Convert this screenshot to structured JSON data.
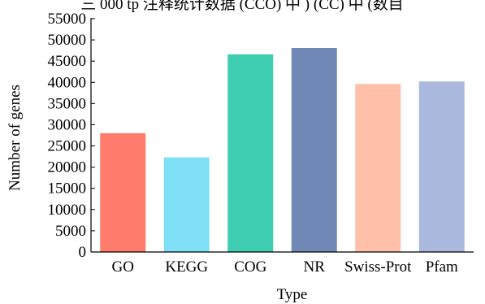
{
  "header_fragment": "三 000 tp 注释统计数据 (CCO) 中 ) (CC) 中 (数目",
  "chart_data": {
    "type": "bar",
    "categories": [
      "GO",
      "KEGG",
      "COG",
      "NR",
      "Swiss-Prot",
      "Pfam"
    ],
    "values": [
      28000,
      22300,
      46600,
      48100,
      39600,
      40200
    ],
    "colors": [
      "#ff7b6b",
      "#80e0f5",
      "#3ecdb0",
      "#7088b6",
      "#ffbfa8",
      "#aab9dd"
    ],
    "title": "",
    "xlabel": "Type",
    "ylabel": "Number of genes",
    "ylim": [
      0,
      55000
    ],
    "yticks": [
      0,
      5000,
      10000,
      15000,
      20000,
      25000,
      30000,
      35000,
      40000,
      45000,
      50000,
      55000
    ],
    "grid": false,
    "legend": "none"
  }
}
